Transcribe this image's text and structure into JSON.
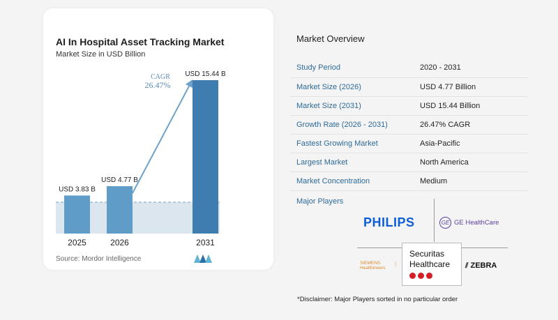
{
  "chart_data": {
    "type": "bar",
    "title": "AI In Hospital Asset Tracking Market",
    "subtitle": "Market Size in USD Billion",
    "categories": [
      "2025",
      "2026",
      "2031"
    ],
    "values": [
      3.83,
      4.77,
      15.44
    ],
    "value_labels": [
      "USD 3.83 B",
      "USD 4.77 B",
      "USD 15.44 B"
    ],
    "cagr_label": "CAGR",
    "cagr_value": "26.47%",
    "ylim": [
      0,
      16
    ],
    "bar_colors": [
      "#5f9dc8",
      "#5f9dc8",
      "#3f7db0"
    ],
    "arrow_color": "#6ea1c8"
  },
  "source": "Source:  Mordor Intelligence",
  "overview": {
    "title": "Market Overview",
    "rows": [
      {
        "key": "Study Period",
        "value": "2020 - 2031"
      },
      {
        "key": "Market Size (2026)",
        "value": "USD 4.77 Billion"
      },
      {
        "key": "Market Size (2031)",
        "value": "USD 15.44 Billion"
      },
      {
        "key": "Growth Rate (2026 - 2031)",
        "value": "26.47% CAGR"
      },
      {
        "key": "Fastest Growing Market",
        "value": "Asia-Pacific"
      },
      {
        "key": "Largest Market",
        "value": "North America"
      },
      {
        "key": "Market Concentration",
        "value": "Medium"
      }
    ]
  },
  "players": {
    "title": "Major Players",
    "philips": "PHILIPS",
    "ge_mark": "GE",
    "ge": "GE HealthCare",
    "siemens_line1": "SIEMENS",
    "siemens_line2": "Healthineers",
    "securitas_line1": "Securitas",
    "securitas_line2": "Healthcare",
    "zebra": "ZEBRA"
  },
  "disclaimer": "*Disclaimer: Major Players sorted in no particular order",
  "colors": {
    "accent": "#2d6a97",
    "brand_red": "#d41f26"
  }
}
